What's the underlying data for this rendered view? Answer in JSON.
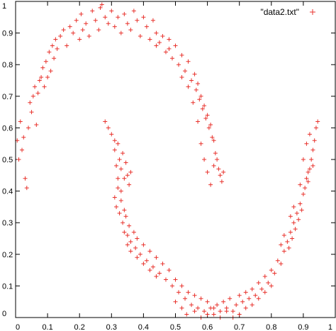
{
  "chart_data": {
    "type": "scatter",
    "title": "",
    "xlabel": "",
    "ylabel": "",
    "xlim": [
      0,
      1
    ],
    "ylim": [
      0,
      1
    ],
    "x_ticks": [
      "0",
      "0.1",
      "0.2",
      "0.3",
      "0.4",
      "0.5",
      "0.6",
      "0.7",
      "0.8",
      "0.9",
      "1"
    ],
    "y_ticks": [
      "0",
      "0.1",
      "0.2",
      "0.3",
      "0.4",
      "0.5",
      "0.6",
      "0.7",
      "0.8",
      "0.9",
      "1"
    ],
    "grid": false,
    "legend_position": "top-right",
    "marker": "plus",
    "series": [
      {
        "name": "\"data2.txt\"",
        "color": "#e8322c",
        "points": [
          [
            0.005,
            0.56
          ],
          [
            0.01,
            0.5
          ],
          [
            0.015,
            0.62
          ],
          [
            0.02,
            0.53
          ],
          [
            0.025,
            0.57
          ],
          [
            0.03,
            0.44
          ],
          [
            0.035,
            0.41
          ],
          [
            0.04,
            0.6
          ],
          [
            0.045,
            0.68
          ],
          [
            0.05,
            0.65
          ],
          [
            0.055,
            0.7
          ],
          [
            0.06,
            0.73
          ],
          [
            0.065,
            0.61
          ],
          [
            0.07,
            0.71
          ],
          [
            0.075,
            0.75
          ],
          [
            0.08,
            0.76
          ],
          [
            0.085,
            0.79
          ],
          [
            0.09,
            0.73
          ],
          [
            0.095,
            0.81
          ],
          [
            0.1,
            0.76
          ],
          [
            0.105,
            0.84
          ],
          [
            0.11,
            0.78
          ],
          [
            0.115,
            0.86
          ],
          [
            0.12,
            0.82
          ],
          [
            0.125,
            0.88
          ],
          [
            0.13,
            0.85
          ],
          [
            0.14,
            0.89
          ],
          [
            0.15,
            0.91
          ],
          [
            0.16,
            0.86
          ],
          [
            0.17,
            0.92
          ],
          [
            0.18,
            0.9
          ],
          [
            0.19,
            0.94
          ],
          [
            0.2,
            0.88
          ],
          [
            0.205,
            0.96
          ],
          [
            0.21,
            0.91
          ],
          [
            0.22,
            0.93
          ],
          [
            0.23,
            0.89
          ],
          [
            0.24,
            0.97
          ],
          [
            0.25,
            0.94
          ],
          [
            0.26,
            0.91
          ],
          [
            0.265,
            0.98
          ],
          [
            0.27,
            0.99
          ],
          [
            0.28,
            0.95
          ],
          [
            0.29,
            0.93
          ],
          [
            0.3,
            0.97
          ],
          [
            0.31,
            0.92
          ],
          [
            0.32,
            0.95
          ],
          [
            0.33,
            0.9
          ],
          [
            0.34,
            0.96
          ],
          [
            0.35,
            0.93
          ],
          [
            0.36,
            0.91
          ],
          [
            0.37,
            0.97
          ],
          [
            0.38,
            0.94
          ],
          [
            0.39,
            0.89
          ],
          [
            0.4,
            0.95
          ],
          [
            0.41,
            0.92
          ],
          [
            0.42,
            0.88
          ],
          [
            0.43,
            0.94
          ],
          [
            0.44,
            0.9
          ],
          [
            0.45,
            0.87
          ],
          [
            0.46,
            0.89
          ],
          [
            0.47,
            0.84
          ],
          [
            0.48,
            0.88
          ],
          [
            0.49,
            0.82
          ],
          [
            0.5,
            0.86
          ],
          [
            0.51,
            0.8
          ],
          [
            0.52,
            0.83
          ],
          [
            0.53,
            0.78
          ],
          [
            0.54,
            0.81
          ],
          [
            0.55,
            0.75
          ],
          [
            0.56,
            0.77
          ],
          [
            0.565,
            0.72
          ],
          [
            0.57,
            0.74
          ],
          [
            0.575,
            0.69
          ],
          [
            0.58,
            0.7
          ],
          [
            0.585,
            0.66
          ],
          [
            0.59,
            0.67
          ],
          [
            0.595,
            0.63
          ],
          [
            0.6,
            0.64
          ],
          [
            0.605,
            0.6
          ],
          [
            0.61,
            0.61
          ],
          [
            0.615,
            0.57
          ],
          [
            0.62,
            0.56
          ],
          [
            0.625,
            0.52
          ],
          [
            0.63,
            0.5
          ],
          [
            0.635,
            0.47
          ],
          [
            0.64,
            0.45
          ],
          [
            0.62,
            0.48
          ],
          [
            0.6,
            0.46
          ],
          [
            0.645,
            0.43
          ],
          [
            0.65,
            0.46
          ],
          [
            0.61,
            0.42
          ],
          [
            0.59,
            0.5
          ],
          [
            0.58,
            0.55
          ],
          [
            0.57,
            0.62
          ],
          [
            0.555,
            0.68
          ],
          [
            0.54,
            0.73
          ],
          [
            0.52,
            0.76
          ],
          [
            0.48,
            0.85
          ],
          [
            0.44,
            0.86
          ],
          [
            0.31,
            0.56
          ],
          [
            0.32,
            0.55
          ],
          [
            0.325,
            0.5
          ],
          [
            0.33,
            0.47
          ],
          [
            0.335,
            0.52
          ],
          [
            0.34,
            0.44
          ],
          [
            0.345,
            0.49
          ],
          [
            0.35,
            0.45
          ],
          [
            0.355,
            0.42
          ],
          [
            0.36,
            0.46
          ],
          [
            0.31,
            0.38
          ],
          [
            0.315,
            0.35
          ],
          [
            0.32,
            0.41
          ],
          [
            0.325,
            0.33
          ],
          [
            0.33,
            0.37
          ],
          [
            0.335,
            0.3
          ],
          [
            0.34,
            0.27
          ],
          [
            0.345,
            0.32
          ],
          [
            0.35,
            0.26
          ],
          [
            0.355,
            0.29
          ],
          [
            0.36,
            0.24
          ],
          [
            0.37,
            0.27
          ],
          [
            0.375,
            0.22
          ],
          [
            0.38,
            0.25
          ],
          [
            0.39,
            0.2
          ],
          [
            0.4,
            0.23
          ],
          [
            0.41,
            0.18
          ],
          [
            0.42,
            0.21
          ],
          [
            0.43,
            0.16
          ],
          [
            0.44,
            0.19
          ],
          [
            0.45,
            0.14
          ],
          [
            0.46,
            0.17
          ],
          [
            0.47,
            0.12
          ],
          [
            0.48,
            0.15
          ],
          [
            0.49,
            0.1
          ],
          [
            0.5,
            0.12
          ],
          [
            0.51,
            0.08
          ],
          [
            0.52,
            0.1
          ],
          [
            0.53,
            0.06
          ],
          [
            0.54,
            0.08
          ],
          [
            0.55,
            0.04
          ],
          [
            0.56,
            0.07
          ],
          [
            0.57,
            0.03
          ],
          [
            0.58,
            0.06
          ],
          [
            0.59,
            0.02
          ],
          [
            0.6,
            0.05
          ],
          [
            0.61,
            0.03
          ],
          [
            0.62,
            0.01
          ],
          [
            0.63,
            0.04
          ],
          [
            0.64,
            0.02
          ],
          [
            0.65,
            0.05
          ],
          [
            0.66,
            0.03
          ],
          [
            0.67,
            0.06
          ],
          [
            0.68,
            0.02
          ],
          [
            0.69,
            0.04
          ],
          [
            0.7,
            0.07
          ],
          [
            0.71,
            0.05
          ],
          [
            0.72,
            0.08
          ],
          [
            0.73,
            0.06
          ],
          [
            0.74,
            0.09
          ],
          [
            0.75,
            0.07
          ],
          [
            0.76,
            0.11
          ],
          [
            0.77,
            0.09
          ],
          [
            0.78,
            0.13
          ],
          [
            0.79,
            0.11
          ],
          [
            0.8,
            0.15
          ],
          [
            0.81,
            0.14
          ],
          [
            0.82,
            0.18
          ],
          [
            0.83,
            0.17
          ],
          [
            0.84,
            0.21
          ],
          [
            0.85,
            0.24
          ],
          [
            0.855,
            0.22
          ],
          [
            0.86,
            0.27
          ],
          [
            0.865,
            0.25
          ],
          [
            0.87,
            0.3
          ],
          [
            0.875,
            0.28
          ],
          [
            0.88,
            0.33
          ],
          [
            0.885,
            0.31
          ],
          [
            0.89,
            0.36
          ],
          [
            0.895,
            0.34
          ],
          [
            0.9,
            0.39
          ],
          [
            0.905,
            0.41
          ],
          [
            0.91,
            0.44
          ],
          [
            0.915,
            0.43
          ],
          [
            0.92,
            0.47
          ],
          [
            0.925,
            0.5
          ],
          [
            0.93,
            0.53
          ],
          [
            0.935,
            0.56
          ],
          [
            0.94,
            0.6
          ],
          [
            0.945,
            0.62
          ],
          [
            0.91,
            0.55
          ],
          [
            0.915,
            0.46
          ],
          [
            0.92,
            0.58
          ],
          [
            0.93,
            0.48
          ],
          [
            0.9,
            0.5
          ],
          [
            0.89,
            0.42
          ],
          [
            0.87,
            0.35
          ],
          [
            0.86,
            0.32
          ],
          [
            0.84,
            0.26
          ],
          [
            0.83,
            0.23
          ],
          [
            0.5,
            0.05
          ],
          [
            0.52,
            0.03
          ],
          [
            0.535,
            0.01
          ],
          [
            0.56,
            0.02
          ],
          [
            0.58,
            0.0
          ],
          [
            0.6,
            0.01
          ],
          [
            0.62,
            0.03
          ],
          [
            0.64,
            0.0
          ],
          [
            0.66,
            0.02
          ],
          [
            0.68,
            0.0
          ],
          [
            0.7,
            0.01
          ],
          [
            0.72,
            0.03
          ],
          [
            0.74,
            0.04
          ],
          [
            0.76,
            0.06
          ],
          [
            0.78,
            0.08
          ],
          [
            0.8,
            0.1
          ],
          [
            0.44,
            0.13
          ],
          [
            0.42,
            0.15
          ],
          [
            0.4,
            0.17
          ],
          [
            0.38,
            0.19
          ],
          [
            0.36,
            0.21
          ],
          [
            0.35,
            0.23
          ],
          [
            0.34,
            0.34
          ],
          [
            0.33,
            0.4
          ],
          [
            0.32,
            0.44
          ],
          [
            0.315,
            0.48
          ],
          [
            0.31,
            0.53
          ],
          [
            0.3,
            0.58
          ],
          [
            0.29,
            0.6
          ],
          [
            0.28,
            0.62
          ]
        ]
      }
    ]
  }
}
